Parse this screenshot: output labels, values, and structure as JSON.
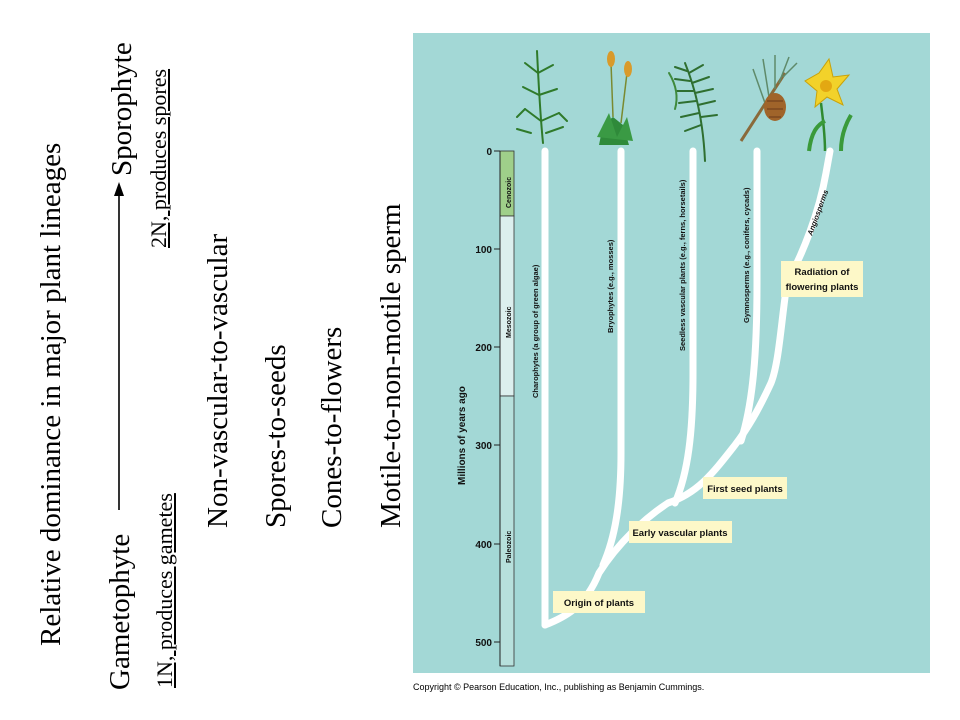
{
  "slide": {
    "title": "Relative dominance in major plant lineages",
    "gametophyte": "Gametophyte",
    "sporophyte": "Sporophyte",
    "gametophyte_note": "1N, produces gametes",
    "sporophyte_note": "2N, produces spores",
    "trends": [
      "Non-vascular-to-vascular",
      "Spores-to-seeds",
      "Cones-to-flowers",
      "Motile-to-non-motile sperm"
    ]
  },
  "figure": {
    "axis_label": "Millions of years ago",
    "ticks": [
      "0",
      "100",
      "200",
      "300",
      "400",
      "500"
    ],
    "eras": [
      "Cenozoic",
      "Mesozoic",
      "Paleozoic"
    ],
    "lineages": [
      "Charophytes (a group of green algae)",
      "Bryophytes (e.g., mosses)",
      "Seedless vascular plants (e.g., ferns, horsetails)",
      "Gymnosperms (e.g., conifers, cycads)",
      "Angiosperms"
    ],
    "events": [
      "Origin of plants",
      "Early vascular plants",
      "First seed plants",
      "Radiation of",
      "flowering plants"
    ],
    "copyright": "Copyright © Pearson Education, Inc., publishing as Benjamin Cummings."
  },
  "colors": {
    "background": "#a3d8d6",
    "branch": "#ffffff",
    "label_box": "#fdf8c8",
    "cenozoic": "#9fcf8a",
    "mesozoic": "#dcefee",
    "paleozoic": "#b7e0dc"
  }
}
